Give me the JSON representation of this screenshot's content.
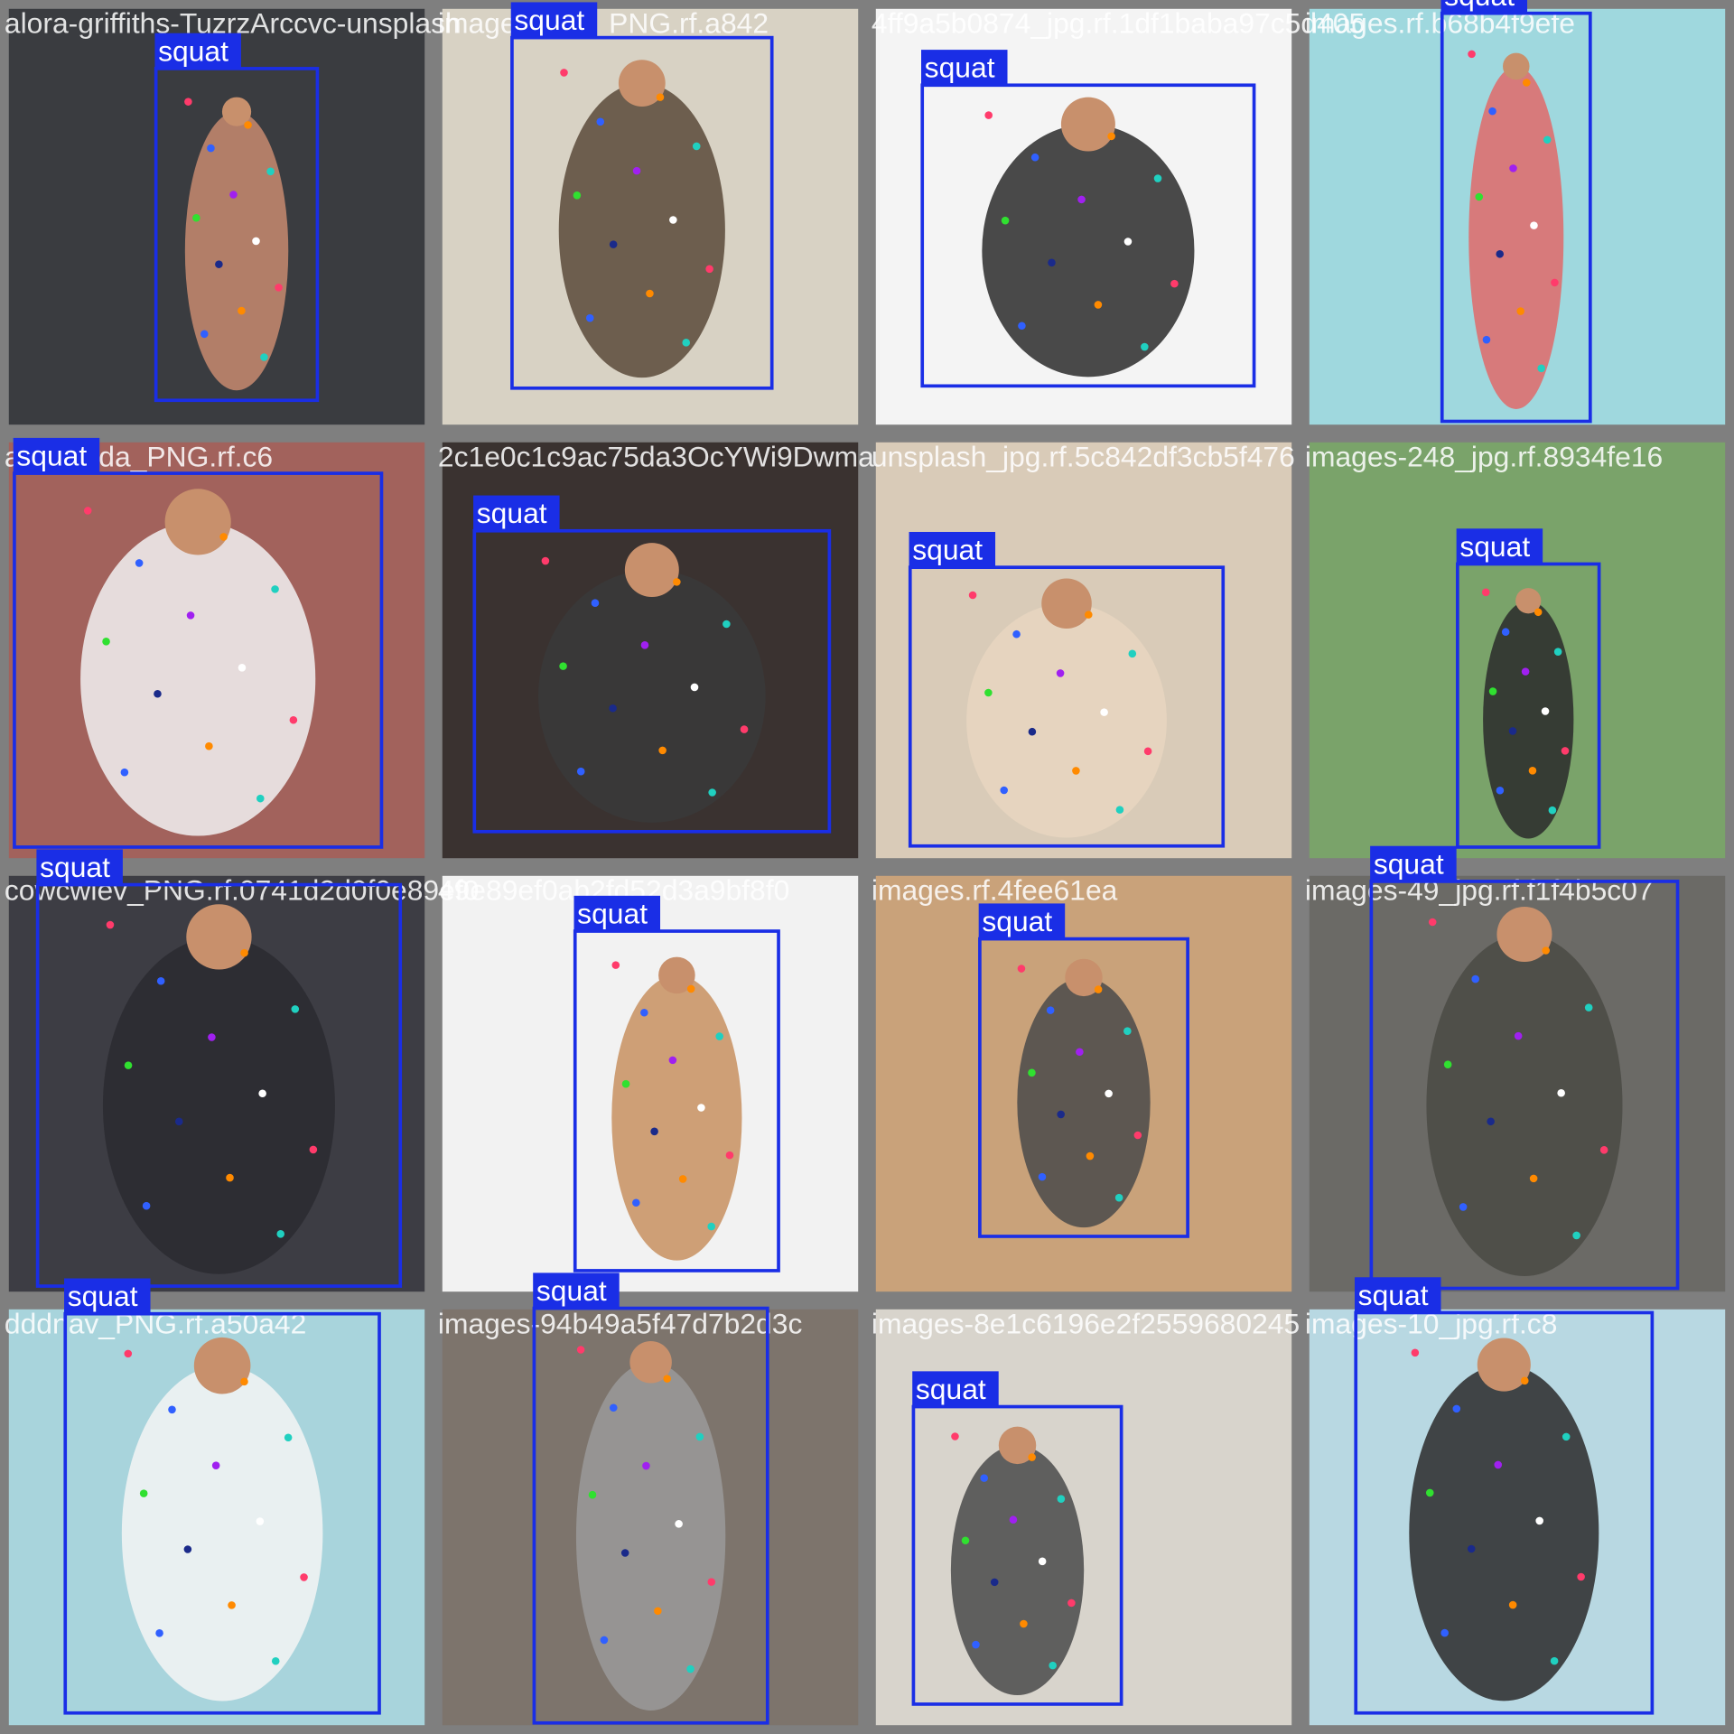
{
  "tiles": [
    {
      "filename": "alora-griffiths-TuzrzArccvc-unsplash",
      "boxes": [
        {
          "label": "squat"
        }
      ]
    },
    {
      "filename": "images-sing_PNG.rf.a842",
      "boxes": [
        {
          "label": "squat"
        }
      ]
    },
    {
      "filename": "4ff9a5b0874_jpg.rf.1df1baba97c5d405",
      "boxes": [
        {
          "label": "squat"
        }
      ]
    },
    {
      "filename": "images.rf.b68b4f9efe",
      "boxes": [
        {
          "label": "squat"
        }
      ]
    },
    {
      "filename": "adasdada_PNG.rf.c6",
      "boxes": [
        {
          "label": "squat"
        }
      ]
    },
    {
      "filename": "2c1e0c1c9ac75da3OcYWi9Dwma",
      "boxes": [
        {
          "label": "squat"
        }
      ]
    },
    {
      "filename": "unsplash_jpg.rf.5c842df3cb5f476",
      "boxes": [
        {
          "label": "squat"
        }
      ]
    },
    {
      "filename": "images-248_jpg.rf.8934fe16",
      "boxes": [
        {
          "label": "squat"
        }
      ]
    },
    {
      "filename": "cowcwiev_PNG.rf.0741d2d0f0e89ef0",
      "boxes": [
        {
          "label": "squat"
        }
      ]
    },
    {
      "filename": "49e89ef0ab2fd52d3a9bf8f0",
      "boxes": [
        {
          "label": "squat"
        }
      ]
    },
    {
      "filename": "images.rf.4fee61ea",
      "boxes": [
        {
          "label": "squat"
        }
      ]
    },
    {
      "filename": "images-49_jpg.rf.f1f4b5c07",
      "boxes": [
        {
          "label": "squat"
        }
      ]
    },
    {
      "filename": "dddnav_PNG.rf.a50a42",
      "boxes": [
        {
          "label": "squat"
        }
      ]
    },
    {
      "filename": "images-94b49a5f47d7b2d3c",
      "boxes": [
        {
          "label": "squat"
        }
      ]
    },
    {
      "filename": "images-8e1c6196e2f2559680245",
      "boxes": [
        {
          "label": "squat"
        }
      ]
    },
    {
      "filename": "images-10_jpg.rf.c8",
      "boxes": [
        {
          "label": "squat"
        }
      ]
    }
  ]
}
